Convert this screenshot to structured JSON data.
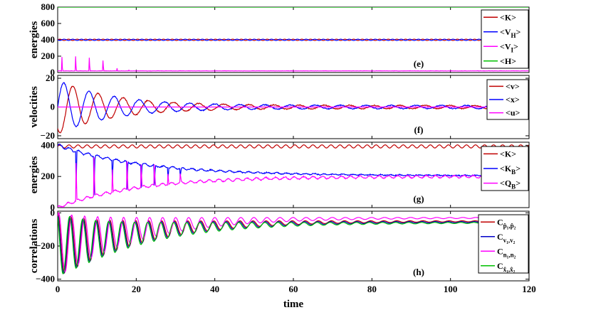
{
  "figure": {
    "xlabel": "time",
    "xlim": [
      0,
      120
    ],
    "xticks": [
      0,
      20,
      40,
      60,
      80,
      100,
      120
    ]
  },
  "chart_data": [
    {
      "type": "line",
      "panel_label": "(e)",
      "ylabel": "energies",
      "xlim": [
        0,
        120
      ],
      "ylim": [
        0,
        800
      ],
      "yticks": [
        0,
        200,
        400,
        600,
        800
      ],
      "legend_position": "top-right",
      "series": [
        {
          "legend": "<K>",
          "name_main": "<K>",
          "name_sub": "",
          "color": "#c00000",
          "description": "oscillates around 400, amplitude ~8, period ~2.2",
          "points": [
            [
              0,
              400
            ],
            [
              20,
              408
            ],
            [
              40,
              392
            ],
            [
              60,
              408
            ],
            [
              80,
              392
            ],
            [
              100,
              405
            ],
            [
              120,
              400
            ]
          ]
        },
        {
          "legend": "<V_H>",
          "name_main": "<V",
          "name_sub": "H",
          "name_tail": ">",
          "color": "#0000ff",
          "description": "oscillates around 400 in antiphase with <K>",
          "points": [
            [
              0,
              400
            ],
            [
              20,
              392
            ],
            [
              40,
              408
            ],
            [
              60,
              392
            ],
            [
              80,
              408
            ],
            [
              100,
              395
            ],
            [
              120,
              400
            ]
          ]
        },
        {
          "legend": "<V_I>",
          "name_main": "<V",
          "name_sub": "I",
          "name_tail": ">",
          "color": "#ff00ff",
          "description": "baseline ~20 with decaying spikes",
          "spikes": [
            [
              1,
              280
            ],
            [
              4.5,
              260
            ],
            [
              8,
              215
            ],
            [
              11.5,
              160
            ],
            [
              15,
              100
            ],
            [
              18,
              55
            ],
            [
              21,
              30
            ]
          ],
          "baseline": 20
        },
        {
          "legend": "<H>",
          "name_main": "<H>",
          "name_sub": "",
          "color": "#00c000",
          "description": "constant total energy",
          "points": [
            [
              0,
              800
            ],
            [
              120,
              800
            ]
          ]
        }
      ]
    },
    {
      "type": "line",
      "panel_label": "(f)",
      "ylabel": "velocities",
      "xlim": [
        0,
        120
      ],
      "ylim": [
        -22,
        22
      ],
      "yticks": [
        -20,
        0,
        20
      ],
      "legend_position": "top-right",
      "series": [
        {
          "legend": "<v>",
          "name_main": "<v>",
          "name_sub": "",
          "color": "#c00000",
          "description": "damped oscillation, amplitude ~19 decaying, period ~6.5, phase lag vs <x>",
          "amplitude": 19,
          "period": 6.4
        },
        {
          "legend": "<x>",
          "name_main": "<x>",
          "name_sub": "",
          "color": "#0000ff",
          "description": "damped oscillation, amplitude ~19 decaying",
          "amplitude": 19,
          "period": 6.4
        },
        {
          "legend": "<u>",
          "name_main": "<u>",
          "name_sub": "",
          "color": "#ff00ff",
          "description": "constant near 0",
          "points": [
            [
              0,
              0
            ],
            [
              120,
              0
            ]
          ]
        }
      ]
    },
    {
      "type": "line",
      "panel_label": "(g)",
      "ylabel": "energies",
      "xlim": [
        0,
        120
      ],
      "ylim": [
        0,
        420
      ],
      "yticks": [
        0,
        200,
        400
      ],
      "legend_position": "top-right",
      "series": [
        {
          "legend": "<K>",
          "name_main": "<K>",
          "name_sub": "",
          "color": "#c00000",
          "description": "around 395, oscillation amplitude ~10",
          "points": [
            [
              0,
              395
            ],
            [
              60,
              390
            ],
            [
              120,
              395
            ]
          ]
        },
        {
          "legend": "<K_B>",
          "name_main": "<K",
          "name_sub": "B",
          "name_tail": ">",
          "color": "#0000ff",
          "description": "decays from 400 toward ~205 with downward spikes",
          "points": [
            [
              0,
              400
            ],
            [
              20,
              300
            ],
            [
              40,
              235
            ],
            [
              60,
              215
            ],
            [
              80,
              208
            ],
            [
              100,
              204
            ],
            [
              120,
              204
            ]
          ]
        },
        {
          "legend": "<Q_B>",
          "name_main": "<Q",
          "name_sub": "B",
          "name_tail": ">",
          "color": "#ff00ff",
          "description": "rises from 0 toward ~200 with upward spikes",
          "points": [
            [
              0,
              0
            ],
            [
              20,
              110
            ],
            [
              40,
              165
            ],
            [
              60,
              185
            ],
            [
              80,
              192
            ],
            [
              100,
              198
            ],
            [
              120,
              200
            ]
          ]
        }
      ]
    },
    {
      "type": "line",
      "panel_label": "(h)",
      "ylabel": "correlations",
      "xlabel": "time",
      "xlim": [
        0,
        120
      ],
      "ylim": [
        -410,
        10
      ],
      "yticks": [
        -400,
        -200,
        0
      ],
      "legend_position": "top-right",
      "series": [
        {
          "legend": "C_{p1,p2}",
          "name_main": "C",
          "name_sub": "p̂₁,p̂₂",
          "color": "#c00000",
          "description": "damped oscillation between 0 and ~-380, settling near -50"
        },
        {
          "legend": "C_{v1,v2}",
          "name_main": "C",
          "name_sub": "v₁,v₂",
          "color": "#0000c8",
          "description": "damped oscillation between 0 and ~-390"
        },
        {
          "legend": "C_{n1,n2}",
          "name_main": "C",
          "name_sub": "n₁,n₂",
          "color": "#ff00ff",
          "description": "damped oscillation, settles near -30"
        },
        {
          "legend": "C_{x1,x2}",
          "name_main": "C",
          "name_sub": "x̂₁,x̂₂",
          "color": "#00c000",
          "description": "damped oscillation, settles near -60"
        }
      ]
    }
  ]
}
